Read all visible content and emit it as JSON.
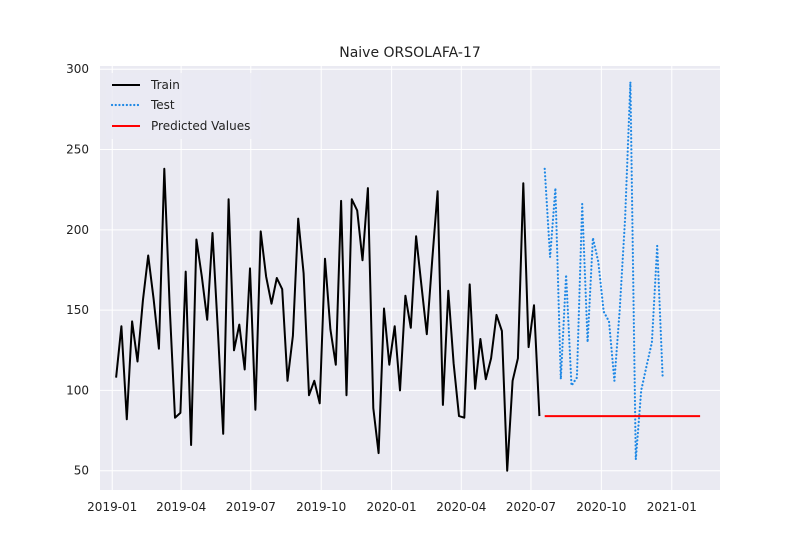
{
  "chart_data": {
    "type": "line",
    "title": "Naive ORSOLAFA-17",
    "xlabel": "",
    "ylabel": "",
    "x_ticks": [
      "2019-01",
      "2019-04",
      "2019-07",
      "2019-10",
      "2020-01",
      "2020-04",
      "2020-07",
      "2020-10",
      "2021-01"
    ],
    "y_ticks": [
      50,
      100,
      150,
      200,
      250,
      300
    ],
    "xlim": [
      "2018-12-16",
      "2021-03-05"
    ],
    "ylim": [
      38,
      302
    ],
    "grid": true,
    "legend_position": "top-left",
    "series": [
      {
        "name": "Train",
        "color": "#000000",
        "style": "solid",
        "x": [
          "2019-01-06",
          "2019-01-13",
          "2019-01-20",
          "2019-01-27",
          "2019-02-03",
          "2019-02-10",
          "2019-02-17",
          "2019-02-24",
          "2019-03-03",
          "2019-03-10",
          "2019-03-17",
          "2019-03-24",
          "2019-03-31",
          "2019-04-07",
          "2019-04-14",
          "2019-04-21",
          "2019-04-28",
          "2019-05-05",
          "2019-05-12",
          "2019-05-19",
          "2019-05-26",
          "2019-06-02",
          "2019-06-09",
          "2019-06-16",
          "2019-06-23",
          "2019-06-30",
          "2019-07-07",
          "2019-07-14",
          "2019-07-21",
          "2019-07-28",
          "2019-08-04",
          "2019-08-11",
          "2019-08-18",
          "2019-08-25",
          "2019-09-01",
          "2019-09-08",
          "2019-09-15",
          "2019-09-22",
          "2019-09-29",
          "2019-10-06",
          "2019-10-13",
          "2019-10-20",
          "2019-10-27",
          "2019-11-03",
          "2019-11-10",
          "2019-11-17",
          "2019-11-24",
          "2019-12-01",
          "2019-12-08",
          "2019-12-15",
          "2019-12-22",
          "2019-12-29",
          "2020-01-05",
          "2020-01-12",
          "2020-01-19",
          "2020-01-26",
          "2020-02-02",
          "2020-02-09",
          "2020-02-16",
          "2020-02-23",
          "2020-03-01",
          "2020-03-08",
          "2020-03-15",
          "2020-03-22",
          "2020-03-29",
          "2020-04-05",
          "2020-04-12",
          "2020-04-19",
          "2020-04-26",
          "2020-05-03",
          "2020-05-10",
          "2020-05-17",
          "2020-05-24",
          "2020-05-31",
          "2020-06-07",
          "2020-06-14",
          "2020-06-21",
          "2020-06-28",
          "2020-07-05",
          "2020-07-12"
        ],
        "values": [
          108,
          140,
          82,
          143,
          118,
          156,
          184,
          157,
          126,
          238,
          152,
          83,
          86,
          174,
          66,
          194,
          171,
          144,
          198,
          137,
          73,
          219,
          125,
          141,
          113,
          176,
          88,
          199,
          171,
          154,
          170,
          163,
          106,
          134,
          207,
          173,
          97,
          106,
          92,
          182,
          138,
          116,
          218,
          97,
          219,
          212,
          181,
          226,
          89,
          61,
          151,
          116,
          140,
          100,
          159,
          139,
          196,
          165,
          135,
          181,
          224,
          91,
          162,
          117,
          84,
          83,
          166,
          101,
          132,
          107,
          120,
          147,
          137,
          50,
          106,
          120,
          229,
          127,
          153,
          84
        ]
      },
      {
        "name": "Test",
        "color": "#1e88e5",
        "style": "dotted",
        "x": [
          "2020-07-19",
          "2020-07-26",
          "2020-08-02",
          "2020-08-09",
          "2020-08-16",
          "2020-08-23",
          "2020-08-30",
          "2020-09-06",
          "2020-09-13",
          "2020-09-20",
          "2020-09-27",
          "2020-10-04",
          "2020-10-11",
          "2020-10-18",
          "2020-10-25",
          "2020-11-01",
          "2020-11-08",
          "2020-11-15",
          "2020-11-22",
          "2020-11-29",
          "2020-12-06",
          "2020-12-13",
          "2020-12-20",
          "2020-12-27"
        ],
        "values": [
          238,
          183,
          226,
          107,
          172,
          103,
          108,
          216,
          130,
          195,
          180,
          149,
          143,
          106,
          150,
          207,
          292,
          57,
          100,
          115,
          130,
          190,
          109,
          null
        ]
      },
      {
        "name": "Predicted Values",
        "color": "#ff0000",
        "style": "solid",
        "x": [
          "2020-07-19",
          "2021-02-07"
        ],
        "values": [
          84,
          84
        ]
      }
    ]
  }
}
